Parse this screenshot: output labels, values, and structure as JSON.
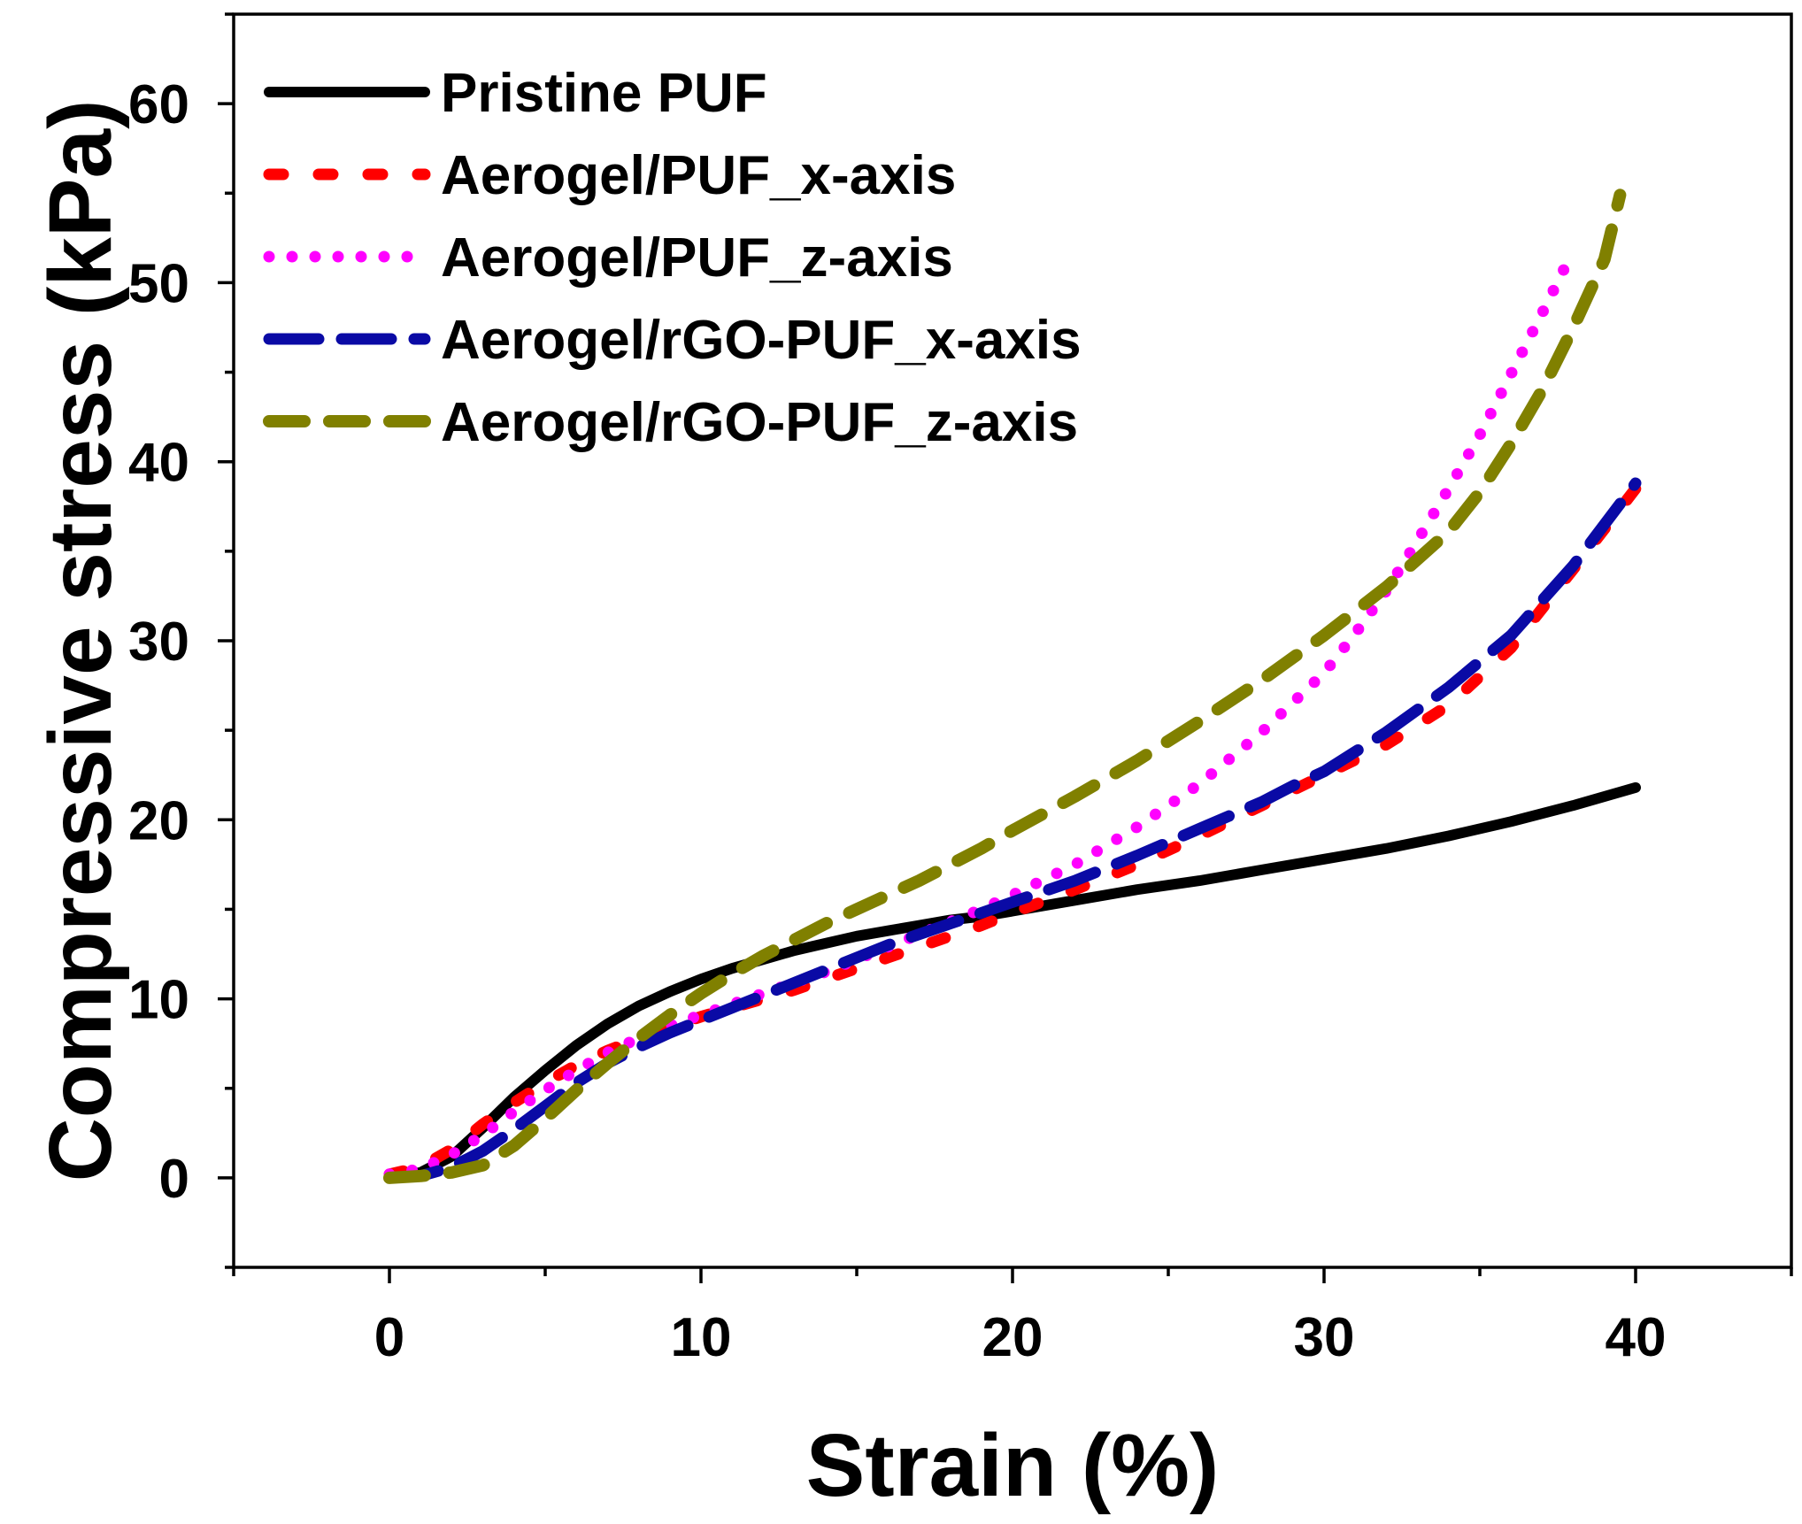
{
  "chart_data": {
    "type": "line",
    "title": "",
    "xlabel": "Strain (%)",
    "ylabel": "Compressive stress (kPa)",
    "xlim": [
      -5,
      45
    ],
    "ylim": [
      -5,
      65
    ],
    "xticks": [
      0,
      10,
      20,
      30,
      40
    ],
    "yticks": [
      0,
      10,
      20,
      30,
      40,
      50,
      60
    ],
    "xtick_labels": [
      "0",
      "10",
      "20",
      "30",
      "40"
    ],
    "ytick_labels": [
      "0",
      "10",
      "20",
      "30",
      "40",
      "50",
      "60"
    ],
    "legend_position": "top-left",
    "series": [
      {
        "name": "Pristine PUF",
        "color": "#000000",
        "style": "solid",
        "x": [
          0,
          1,
          2,
          3,
          4,
          5,
          6,
          7,
          8,
          9,
          10,
          11,
          12,
          13,
          14,
          15,
          16,
          17,
          18,
          19,
          20,
          22,
          24,
          26,
          28,
          30,
          32,
          34,
          36,
          38,
          40
        ],
        "y": [
          0,
          0.3,
          1.2,
          2.8,
          4.5,
          6.0,
          7.4,
          8.6,
          9.6,
          10.4,
          11.1,
          11.7,
          12.2,
          12.7,
          13.1,
          13.5,
          13.8,
          14.1,
          14.4,
          14.6,
          14.9,
          15.5,
          16.1,
          16.6,
          17.2,
          17.8,
          18.4,
          19.1,
          19.9,
          20.8,
          21.8
        ]
      },
      {
        "name": "Aerogel/PUF_x-axis",
        "color": "#ff0000",
        "style": "dash-short",
        "x": [
          0,
          1,
          2,
          3,
          4,
          5,
          6,
          7,
          8,
          9,
          10,
          11,
          12,
          13,
          14,
          15,
          16,
          17,
          18,
          19,
          20,
          22,
          24,
          26,
          28,
          30,
          32,
          34,
          36,
          38,
          40
        ],
        "y": [
          0.2,
          0.6,
          1.6,
          3.0,
          4.2,
          5.3,
          6.3,
          7.1,
          7.8,
          8.4,
          9.0,
          9.5,
          10.0,
          10.5,
          11.1,
          11.7,
          12.3,
          12.9,
          13.5,
          14.1,
          14.8,
          16.1,
          17.5,
          19.1,
          20.8,
          22.5,
          24.2,
          26.4,
          29.6,
          34.0,
          38.5
        ]
      },
      {
        "name": "Aerogel/PUF_z-axis",
        "color": "#ff00ff",
        "style": "dot",
        "x": [
          0,
          1,
          2,
          3,
          4,
          5,
          6,
          7,
          8,
          9,
          10,
          11,
          12,
          13,
          14,
          15,
          16,
          17,
          18,
          19,
          20,
          22,
          24,
          26,
          28,
          30,
          31,
          32,
          33,
          34,
          35,
          36,
          37,
          38
        ],
        "y": [
          0.2,
          0.5,
          1.3,
          2.4,
          3.7,
          4.9,
          6.0,
          7.0,
          7.8,
          8.5,
          9.1,
          9.7,
          10.3,
          10.9,
          11.5,
          12.2,
          12.9,
          13.6,
          14.3,
          15.0,
          15.8,
          17.5,
          19.6,
          22.0,
          24.9,
          28.2,
          30.4,
          32.8,
          35.6,
          38.5,
          41.5,
          44.9,
          48.3,
          51.8
        ]
      },
      {
        "name": "Aerogel/rGO-PUF_x-axis",
        "color": "#0a0aa5",
        "style": "dash-long",
        "x": [
          0,
          1,
          2,
          3,
          4,
          5,
          6,
          7,
          8,
          9,
          10,
          11,
          12,
          13,
          14,
          15,
          16,
          17,
          18,
          19,
          20,
          22,
          24,
          26,
          28,
          29,
          30,
          32,
          34,
          36,
          38,
          40
        ],
        "y": [
          0,
          0.1,
          0.6,
          1.5,
          2.7,
          4.0,
          5.3,
          6.4,
          7.3,
          8.1,
          8.8,
          9.5,
          10.2,
          10.9,
          11.6,
          12.3,
          13.0,
          13.6,
          14.2,
          14.8,
          15.4,
          16.6,
          18.0,
          19.5,
          21.0,
          21.9,
          22.7,
          24.9,
          27.4,
          30.3,
          34.2,
          38.8
        ]
      },
      {
        "name": "Aerogel/rGO-PUF_z-axis",
        "color": "#808000",
        "style": "dash-medium",
        "x": [
          0,
          1,
          2,
          3,
          4,
          5,
          6,
          7,
          8,
          9,
          10,
          11,
          12,
          13,
          14,
          15,
          16,
          17,
          18,
          19,
          20,
          22,
          24,
          26,
          28,
          30,
          32,
          34,
          35,
          36,
          37,
          38,
          39,
          39.5
        ],
        "y": [
          0,
          0.1,
          0.3,
          0.7,
          1.8,
          3.3,
          4.9,
          6.4,
          7.8,
          9.1,
          10.3,
          11.4,
          12.4,
          13.3,
          14.2,
          15.0,
          15.8,
          16.6,
          17.5,
          18.4,
          19.4,
          21.3,
          23.3,
          25.5,
          27.8,
          30.3,
          33.0,
          36.1,
          38.3,
          41.0,
          44.0,
          47.5,
          51.3,
          54.9
        ]
      }
    ]
  }
}
